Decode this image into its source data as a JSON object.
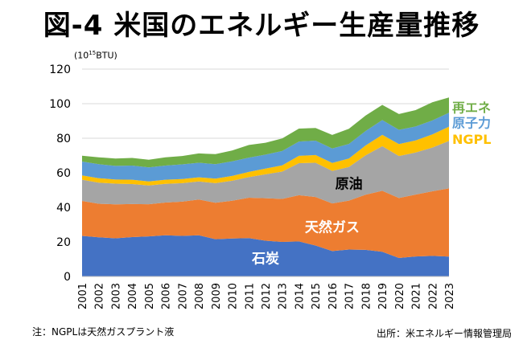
{
  "header": {
    "title": "図-4 米国のエネルギー生産量推移"
  },
  "unit": {
    "base": "(10",
    "exp": "15",
    "rest": "BTU)"
  },
  "footer": {
    "note": "注：NGPLは天然ガスプラント液",
    "source": "出所：米エネルギー情報管理局"
  },
  "colors": {
    "石炭": "#4472c4",
    "天然ガス": "#ed7d31",
    "原油": "#a5a5a5",
    "NGPL": "#ffc000",
    "原子力": "#5b9bd5",
    "再エネ": "#70ad47"
  },
  "chart_data": {
    "type": "area",
    "stacked": true,
    "x": [
      "2001",
      "2002",
      "2003",
      "2004",
      "2005",
      "2006",
      "2007",
      "2008",
      "2009",
      "2010",
      "2011",
      "2012",
      "2013",
      "2014",
      "2015",
      "2016",
      "2017",
      "2018",
      "2019",
      "2020",
      "2021",
      "2022",
      "2023"
    ],
    "series": [
      {
        "name": "石炭",
        "values": [
          23.5,
          22.7,
          22.1,
          22.8,
          23.2,
          23.8,
          23.5,
          23.8,
          21.6,
          22.0,
          22.2,
          20.7,
          20.0,
          20.3,
          17.9,
          14.7,
          15.6,
          15.4,
          14.3,
          10.7,
          11.6,
          11.9,
          11.5
        ]
      },
      {
        "name": "天然ガス",
        "values": [
          20.2,
          19.4,
          19.6,
          19.1,
          18.6,
          19.0,
          19.8,
          20.7,
          21.1,
          21.8,
          23.4,
          24.6,
          24.9,
          26.7,
          28.1,
          27.6,
          28.3,
          31.9,
          35.3,
          34.7,
          35.8,
          37.4,
          39.5
        ]
      },
      {
        "name": "原油",
        "values": [
          12.3,
          12.2,
          12.0,
          11.6,
          10.9,
          10.8,
          10.7,
          10.5,
          11.3,
          11.6,
          11.9,
          13.8,
          15.8,
          18.6,
          19.8,
          18.8,
          19.5,
          22.8,
          25.8,
          24.3,
          24.3,
          25.3,
          27.4
        ]
      },
      {
        "name": "NGPL",
        "values": [
          2.5,
          2.6,
          2.4,
          2.5,
          2.3,
          2.4,
          2.4,
          2.4,
          2.6,
          2.8,
          3.0,
          3.3,
          3.6,
          4.2,
          4.5,
          4.6,
          4.9,
          5.7,
          6.6,
          6.9,
          7.0,
          7.6,
          8.3
        ]
      },
      {
        "name": "原子力",
        "values": [
          8.0,
          8.1,
          7.9,
          8.2,
          8.1,
          8.2,
          8.5,
          8.4,
          8.4,
          8.4,
          8.3,
          8.1,
          8.3,
          8.3,
          8.3,
          8.4,
          8.4,
          8.4,
          8.5,
          8.3,
          8.1,
          8.1,
          8.1
        ]
      },
      {
        "name": "再エネ",
        "values": [
          3.4,
          4.0,
          4.3,
          4.4,
          4.5,
          4.8,
          4.8,
          5.4,
          5.8,
          6.3,
          7.3,
          6.9,
          7.3,
          7.5,
          7.3,
          7.8,
          8.8,
          8.9,
          8.8,
          9.1,
          9.5,
          10.5,
          8.8
        ]
      }
    ],
    "ylim": [
      0,
      120
    ],
    "yticks": [
      0,
      20,
      40,
      60,
      80,
      100,
      120
    ],
    "grid": true,
    "inline_labels": [
      "石炭",
      "天然ガス",
      "原油"
    ],
    "right_labels": [
      "再エネ",
      "原子力",
      "NGPL"
    ]
  }
}
